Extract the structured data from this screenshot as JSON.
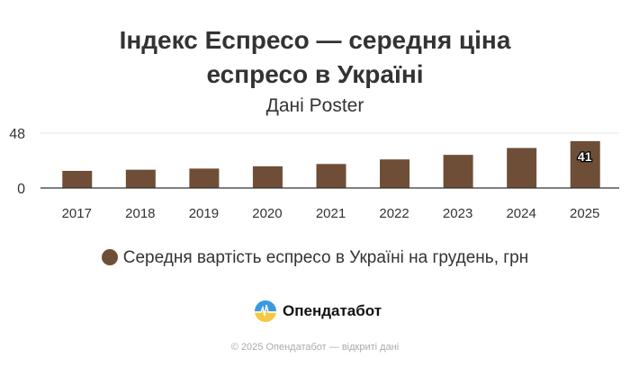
{
  "chart_data": {
    "type": "bar",
    "title": "Індекс Еспресо — середня ціна еспресо в Україні",
    "title_lines": [
      "Індекс Еспресо — середня ціна",
      "еспресо в Україні"
    ],
    "subtitle": "Дані Poster",
    "categories": [
      "2017",
      "2018",
      "2019",
      "2020",
      "2021",
      "2022",
      "2023",
      "2024",
      "2025"
    ],
    "series": [
      {
        "name": "Середня вартість еспресо в Україні на грудень, грн",
        "values": [
          15,
          16,
          17,
          19,
          21,
          25,
          29,
          35,
          41
        ],
        "color": "#6f4e37"
      }
    ],
    "data_labels": {
      "2025": "41"
    },
    "yticks": [
      0,
      48
    ],
    "ylim": [
      0,
      48
    ],
    "grid": true,
    "legend": "bottom"
  },
  "branding": {
    "logo_text": "Опендатабот",
    "footer": "© 2025 Опендатабот — відкриті дані"
  }
}
